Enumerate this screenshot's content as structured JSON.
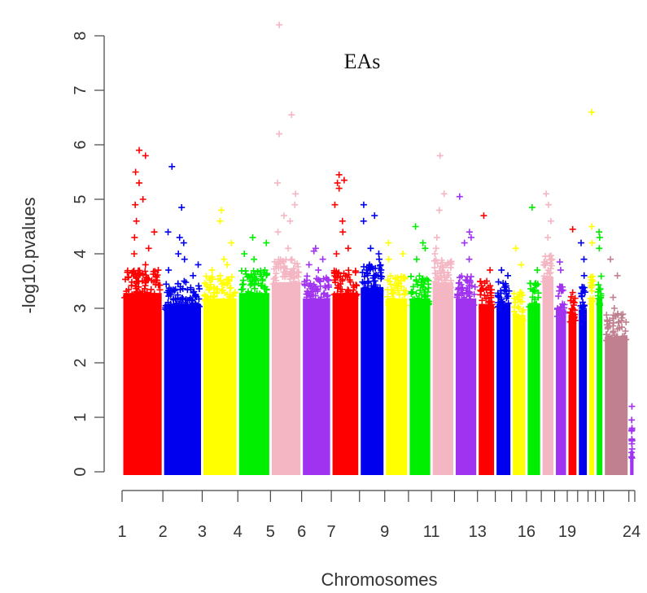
{
  "chart_data": {
    "type": "scatter",
    "subtype": "manhattan",
    "title": "EAs",
    "xlabel": "Chromosomes",
    "ylabel": "-log10.pvalues",
    "ylim": [
      0,
      8.3
    ],
    "y_ticks": [
      "0",
      "1",
      "2",
      "3",
      "4",
      "5",
      "6",
      "7",
      "8"
    ],
    "grid": false,
    "legend": "none",
    "x_tick_labels": [
      "1",
      "2",
      "3",
      "4",
      "5",
      "6",
      "7",
      "9",
      "11",
      "13",
      "16",
      "19",
      "24"
    ],
    "chromosomes": [
      {
        "chr": "1",
        "color": "#ff0000",
        "max": 5.9,
        "dense_top": 3.4,
        "peaks": [
          5.9,
          5.8,
          5.5,
          5.3,
          5.0,
          4.9,
          4.6,
          4.4,
          4.3,
          4.1,
          4.0,
          3.8,
          3.7
        ]
      },
      {
        "chr": "2",
        "color": "#0000ee",
        "max": 5.6,
        "dense_top": 3.2,
        "peaks": [
          5.6,
          4.85,
          4.4,
          4.3,
          4.2,
          4.0,
          3.9,
          3.8,
          3.7,
          3.6
        ]
      },
      {
        "chr": "3",
        "color": "#ffff00",
        "max": 4.8,
        "dense_top": 3.3,
        "peaks": [
          4.8,
          4.6,
          4.2,
          3.9,
          3.8,
          3.7
        ]
      },
      {
        "chr": "4",
        "color": "#00ee00",
        "max": 4.3,
        "dense_top": 3.4,
        "peaks": [
          4.3,
          4.2,
          4.0,
          3.9,
          3.7
        ]
      },
      {
        "chr": "5",
        "color": "#f4b6c2",
        "max": 8.2,
        "dense_top": 3.6,
        "peaks": [
          8.2,
          6.55,
          6.2,
          5.3,
          5.1,
          4.9,
          4.7,
          4.6,
          4.4,
          4.1
        ]
      },
      {
        "chr": "6",
        "color": "#a033f0",
        "max": 4.1,
        "dense_top": 3.3,
        "peaks": [
          4.1,
          4.05,
          3.9,
          3.8,
          3.7
        ]
      },
      {
        "chr": "7",
        "color": "#ff0000",
        "max": 5.45,
        "dense_top": 3.4,
        "peaks": [
          5.45,
          5.35,
          5.3,
          5.2,
          4.9,
          4.6,
          4.4,
          4.1,
          4.0
        ]
      },
      {
        "chr": "8",
        "color": "#0000ee",
        "max": 4.9,
        "dense_top": 3.5,
        "peaks": [
          4.9,
          4.7,
          4.6,
          4.1,
          4.0,
          3.9,
          3.8,
          3.6
        ]
      },
      {
        "chr": "9",
        "color": "#ffff00",
        "max": 4.2,
        "dense_top": 3.3,
        "peaks": [
          4.2,
          4.0,
          3.9
        ]
      },
      {
        "chr": "10",
        "color": "#00ee00",
        "max": 4.5,
        "dense_top": 3.3,
        "peaks": [
          4.5,
          4.2,
          4.1,
          3.9
        ]
      },
      {
        "chr": "11",
        "color": "#f4b6c2",
        "max": 5.8,
        "dense_top": 3.6,
        "peaks": [
          5.8,
          5.1,
          4.8,
          4.3,
          4.1,
          4.0
        ]
      },
      {
        "chr": "12",
        "color": "#a033f0",
        "max": 5.05,
        "dense_top": 3.3,
        "peaks": [
          5.05,
          4.4,
          4.3,
          4.2,
          3.9
        ]
      },
      {
        "chr": "13",
        "color": "#ff0000",
        "max": 4.7,
        "dense_top": 3.2,
        "peaks": [
          4.7,
          3.7
        ]
      },
      {
        "chr": "14",
        "color": "#0000ee",
        "max": 3.7,
        "dense_top": 3.2,
        "peaks": [
          3.7,
          3.6
        ]
      },
      {
        "chr": "15",
        "color": "#ffff00",
        "max": 4.1,
        "dense_top": 3.0,
        "peaks": [
          4.1,
          3.8
        ]
      },
      {
        "chr": "16",
        "color": "#00ee00",
        "max": 4.85,
        "dense_top": 3.2,
        "peaks": [
          4.85,
          3.7
        ]
      },
      {
        "chr": "17",
        "color": "#f4b6c2",
        "max": 5.1,
        "dense_top": 3.7,
        "peaks": [
          5.1,
          4.9,
          4.6,
          4.3
        ]
      },
      {
        "chr": "18",
        "color": "#a033f0",
        "max": 3.85,
        "dense_top": 3.1,
        "peaks": [
          3.85,
          3.7
        ]
      },
      {
        "chr": "19",
        "color": "#ff0000",
        "max": 4.45,
        "dense_top": 3.0,
        "peaks": [
          4.45
        ]
      },
      {
        "chr": "20",
        "color": "#0000ee",
        "max": 4.2,
        "dense_top": 3.1,
        "peaks": [
          4.2,
          3.9,
          3.6
        ]
      },
      {
        "chr": "21",
        "color": "#ffff00",
        "max": 6.6,
        "dense_top": 3.3,
        "peaks": [
          6.6,
          4.5,
          4.2
        ]
      },
      {
        "chr": "22",
        "color": "#00ee00",
        "max": 4.4,
        "dense_top": 3.3,
        "peaks": [
          4.4,
          4.3,
          4.1
        ]
      },
      {
        "chr": "23",
        "color": "#c0808f",
        "max": 3.9,
        "dense_top": 2.6,
        "peaks": [
          3.9,
          3.6,
          3.2,
          3.0,
          2.9
        ]
      },
      {
        "chr": "24",
        "color": "#a033f0",
        "max": 1.2,
        "dense_top": 0.5,
        "peaks": [
          1.2,
          0.95,
          0.8,
          0.6
        ]
      }
    ]
  }
}
